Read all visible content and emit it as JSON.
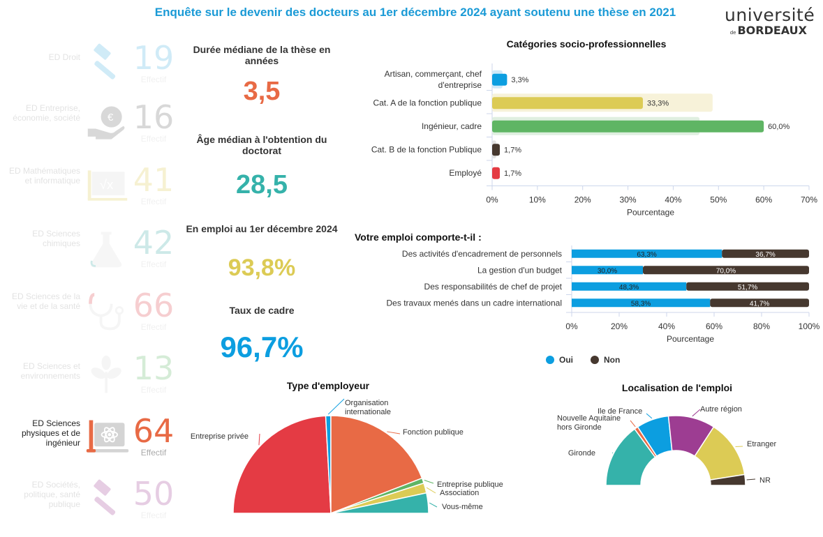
{
  "header": {
    "title": "Enquête sur le devenir des docteurs au 1er décembre 2024 ayant soutenu une thèse en 2021",
    "logo_top": "université",
    "logo_de": "de",
    "logo_bottom": "BORDEAUX"
  },
  "colors": {
    "blue": "#0c9ee0",
    "yellow": "#dccb55",
    "green": "#5fb564",
    "dark": "#46382f",
    "red": "#e43b44",
    "orange": "#e86a45",
    "teal": "#35b2aa",
    "purple": "#9d3d92",
    "title_blue": "#1a9ad6"
  },
  "ed_list": [
    {
      "label": "ED Droit",
      "count": "19",
      "count_label": "Effectif",
      "icon": "gavel-icon",
      "color": "#5bb8e6",
      "active": false
    },
    {
      "label": "ED Entreprise, économie, société",
      "count": "16",
      "count_label": "Effectif",
      "icon": "hand-euro-icon",
      "color": "#777777",
      "active": false
    },
    {
      "label": "ED Mathématiques et informatique",
      "count": "41",
      "count_label": "Effectif",
      "icon": "laptop-sqrt-icon",
      "color": "#e2cf62",
      "active": false
    },
    {
      "label": "ED Sciences chimiques",
      "count": "42",
      "count_label": "Effectif",
      "icon": "flask-icon",
      "color": "#4fb4b0",
      "active": false
    },
    {
      "label": "ED Sciences de la vie et de la santé",
      "count": "66",
      "count_label": "Effectif",
      "icon": "stethoscope-icon",
      "color": "#e2535a",
      "active": false
    },
    {
      "label": "ED Sciences et environnements",
      "count": "13",
      "count_label": "Effectif",
      "icon": "plant-icon",
      "color": "#6cbc73",
      "active": false
    },
    {
      "label": "ED Sciences physiques et de ingénieur",
      "count": "64",
      "count_label": "Effectif",
      "icon": "laptop-atom-icon",
      "color": "#e86a45",
      "active": true
    },
    {
      "label": "ED Sociétés, politique, santé publique",
      "count": "50",
      "count_label": "Effectif",
      "icon": "gavel-icon",
      "color": "#a8509d",
      "active": false
    }
  ],
  "kpis": [
    {
      "title": "Durée médiane de la thèse en années",
      "value": "3,5",
      "color": "#e86a45"
    },
    {
      "title": "Âge médian à l'obtention du doctorat",
      "value": "28,5",
      "color": "#35b2aa"
    },
    {
      "title": "En emploi au 1er décembre 2024",
      "value": "93,8%",
      "color": "#dccb55"
    },
    {
      "title": "Taux de cadre",
      "value": "96,7%",
      "color": "#0c9ee0"
    }
  ],
  "chart_data": [
    {
      "type": "bar",
      "orientation": "horizontal",
      "title": "Catégories socio-professionnelles",
      "xlabel": "Pourcentage",
      "ylabel": "",
      "xlim": [
        0,
        70
      ],
      "xticks": [
        "0%",
        "10%",
        "20%",
        "30%",
        "40%",
        "50%",
        "60%",
        "70%"
      ],
      "categories": [
        "Artisan, commerçant, chef d'entreprise",
        "Cat. A de la fonction publique",
        "Ingénieur, cadre",
        "Cat. B de la fonction Publique",
        "Employé"
      ],
      "values": [
        3.3,
        33.3,
        60.0,
        1.7,
        1.7
      ],
      "value_labels": [
        "3,3%",
        "33,3%",
        "60,0%",
        "1,7%",
        "1,7%"
      ],
      "reference_values": [
        2.3,
        48.7,
        45.8,
        0.9,
        0
      ],
      "colors": [
        "#0c9ee0",
        "#dccb55",
        "#5fb564",
        "#46382f",
        "#e43b44"
      ],
      "reference_colors": [
        "#cfe9f8",
        "#f7f2d9",
        "#dfefe0",
        "#e2e2e2",
        "#f8d8da"
      ]
    },
    {
      "type": "bar",
      "orientation": "horizontal",
      "stacked": true,
      "title": "Votre emploi comporte-t-il :",
      "xlabel": "Pourcentage",
      "xlim": [
        0,
        100
      ],
      "xticks": [
        "0%",
        "20%",
        "40%",
        "60%",
        "80%",
        "100%"
      ],
      "categories": [
        "Des activités d'encadrement de personnels",
        "La gestion d'un budget",
        "Des responsabilités de chef de projet",
        "Des travaux menés dans un cadre international"
      ],
      "series": [
        {
          "name": "Oui",
          "color": "#0c9ee0",
          "values": [
            63.3,
            30.0,
            48.3,
            58.3
          ],
          "labels": [
            "63,3%",
            "30,0%",
            "48,3%",
            "58,3%"
          ]
        },
        {
          "name": "Non",
          "color": "#46382f",
          "values": [
            36.7,
            70.0,
            51.7,
            41.7
          ],
          "labels": [
            "36,7%",
            "70,0%",
            "51,7%",
            "41,7%"
          ]
        }
      ],
      "legend": "bottom"
    },
    {
      "type": "pie",
      "variant": "semi-circle",
      "title": "Type d'employeur",
      "labels": [
        "Entreprise privée",
        "Organisation internationale",
        "Fonction publique",
        "Entreprise publique",
        "Association",
        "Vous-même"
      ],
      "values": [
        48.3,
        1.7,
        38.3,
        1.7,
        3.3,
        6.7
      ],
      "colors": [
        "#e43b44",
        "#0c9ee0",
        "#e86a45",
        "#5fb564",
        "#dccb55",
        "#35b2aa"
      ]
    },
    {
      "type": "pie",
      "variant": "semi-donut",
      "title": "Localisation de l'emploi",
      "labels": [
        "Gironde",
        "Nouvelle Aquitaine hors Gironde",
        "Ile de France",
        "Autre région",
        "Etranger",
        "NR"
      ],
      "values": [
        30.0,
        1.7,
        15.0,
        21.7,
        26.7,
        5.0
      ],
      "colors": [
        "#35b2aa",
        "#e86a45",
        "#0c9ee0",
        "#9d3d92",
        "#dccb55",
        "#46382f"
      ]
    }
  ]
}
